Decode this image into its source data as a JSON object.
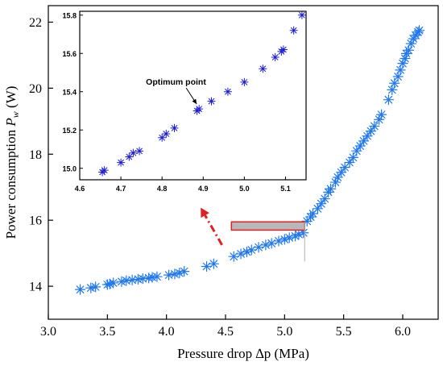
{
  "chart_data": [
    {
      "type": "scatter",
      "name": "main",
      "xlabel": "Pressure drop ∆p (MPa)",
      "ylabel": "Power consumption P_w (W)",
      "ylabel_prefix": "Power consumption ",
      "ylabel_sym": "P",
      "ylabel_sub": "w",
      "ylabel_unit": " (W)",
      "xlim": [
        3.0,
        6.3
      ],
      "ylim": [
        13.0,
        22.5
      ],
      "xticks": [
        3.0,
        3.5,
        4.0,
        4.5,
        5.0,
        5.5,
        6.0
      ],
      "xtick_labels": [
        "3.0",
        "3.5",
        "4.0",
        "4.5",
        "5.0",
        "5.5",
        "6.0"
      ],
      "yticks": [
        14,
        16,
        18,
        20,
        22
      ],
      "ytick_labels": [
        "14",
        "16",
        "18",
        "20",
        "22"
      ],
      "marker": "asterisk",
      "color": "#1f77f0",
      "highlight_box": {
        "x0": 4.55,
        "x1": 5.17,
        "y0": 15.7,
        "y1": 15.95,
        "fill": "#b8b8b8",
        "stroke": "#e02020"
      },
      "arrow": {
        "color": "#e02020",
        "from": [
          4.47,
          15.25
        ],
        "to": [
          4.29,
          16.38
        ]
      },
      "guide_line": {
        "x": 5.17,
        "y0": 14.75,
        "y1": 15.95
      },
      "points": [
        [
          3.27,
          13.9
        ],
        [
          3.36,
          13.95
        ],
        [
          3.4,
          13.98
        ],
        [
          3.5,
          14.05
        ],
        [
          3.52,
          14.07
        ],
        [
          3.55,
          14.1
        ],
        [
          3.62,
          14.14
        ],
        [
          3.66,
          14.17
        ],
        [
          3.71,
          14.19
        ],
        [
          3.76,
          14.21
        ],
        [
          3.8,
          14.23
        ],
        [
          3.85,
          14.25
        ],
        [
          3.88,
          14.27
        ],
        [
          3.92,
          14.29
        ],
        [
          4.02,
          14.34
        ],
        [
          4.07,
          14.37
        ],
        [
          4.11,
          14.4
        ],
        [
          4.15,
          14.45
        ],
        [
          4.34,
          14.6
        ],
        [
          4.4,
          14.68
        ],
        [
          4.57,
          14.9
        ],
        [
          4.63,
          14.98
        ],
        [
          4.68,
          15.04
        ],
        [
          4.72,
          15.1
        ],
        [
          4.78,
          15.18
        ],
        [
          4.84,
          15.25
        ],
        [
          4.89,
          15.3
        ],
        [
          4.95,
          15.37
        ],
        [
          5.0,
          15.42
        ],
        [
          5.04,
          15.47
        ],
        [
          5.09,
          15.52
        ],
        [
          5.12,
          15.57
        ],
        [
          5.16,
          15.62
        ],
        [
          5.19,
          15.97
        ],
        [
          5.22,
          16.1
        ],
        [
          5.24,
          16.2
        ],
        [
          5.28,
          16.35
        ],
        [
          5.31,
          16.5
        ],
        [
          5.34,
          16.65
        ],
        [
          5.37,
          16.85
        ],
        [
          5.39,
          16.95
        ],
        [
          5.43,
          17.15
        ],
        [
          5.45,
          17.3
        ],
        [
          5.48,
          17.45
        ],
        [
          5.51,
          17.6
        ],
        [
          5.55,
          17.75
        ],
        [
          5.58,
          17.9
        ],
        [
          5.61,
          18.1
        ],
        [
          5.64,
          18.25
        ],
        [
          5.67,
          18.4
        ],
        [
          5.7,
          18.55
        ],
        [
          5.73,
          18.7
        ],
        [
          5.76,
          18.85
        ],
        [
          5.8,
          19.05
        ],
        [
          5.82,
          19.2
        ],
        [
          5.88,
          19.65
        ],
        [
          5.91,
          19.95
        ],
        [
          5.93,
          20.15
        ],
        [
          5.96,
          20.35
        ],
        [
          5.98,
          20.55
        ],
        [
          6.0,
          20.75
        ],
        [
          6.02,
          20.9
        ],
        [
          6.03,
          21.05
        ],
        [
          6.05,
          21.15
        ],
        [
          6.07,
          21.35
        ],
        [
          6.09,
          21.5
        ],
        [
          6.11,
          21.6
        ],
        [
          6.13,
          21.7
        ],
        [
          6.14,
          21.75
        ]
      ]
    },
    {
      "type": "scatter",
      "name": "inset",
      "xlim": [
        4.6,
        5.15
      ],
      "ylim": [
        14.94,
        15.82
      ],
      "xticks": [
        4.6,
        4.7,
        4.8,
        4.9,
        5.0,
        5.1
      ],
      "xtick_labels": [
        "4.6",
        "4.7",
        "4.8",
        "4.9",
        "5.0",
        "5.1"
      ],
      "yticks": [
        15.0,
        15.2,
        15.4,
        15.6,
        15.8
      ],
      "ytick_labels": [
        "15.0",
        "15.2",
        "15.4",
        "15.6",
        "15.8"
      ],
      "marker": "asterisk",
      "color": "#1a1adc",
      "annotation": {
        "text": "Optimum point",
        "point": [
          4.89,
          15.31
        ]
      },
      "points": [
        [
          4.655,
          14.98
        ],
        [
          4.66,
          14.99
        ],
        [
          4.7,
          15.03
        ],
        [
          4.72,
          15.06
        ],
        [
          4.73,
          15.08
        ],
        [
          4.745,
          15.09
        ],
        [
          4.8,
          15.16
        ],
        [
          4.81,
          15.18
        ],
        [
          4.83,
          15.21
        ],
        [
          4.885,
          15.3
        ],
        [
          4.89,
          15.31
        ],
        [
          4.92,
          15.35
        ],
        [
          4.96,
          15.4
        ],
        [
          5.0,
          15.45
        ],
        [
          5.045,
          15.52
        ],
        [
          5.075,
          15.58
        ],
        [
          5.09,
          15.61
        ],
        [
          5.095,
          15.62
        ],
        [
          5.12,
          15.72
        ],
        [
          5.14,
          15.8
        ]
      ]
    }
  ]
}
